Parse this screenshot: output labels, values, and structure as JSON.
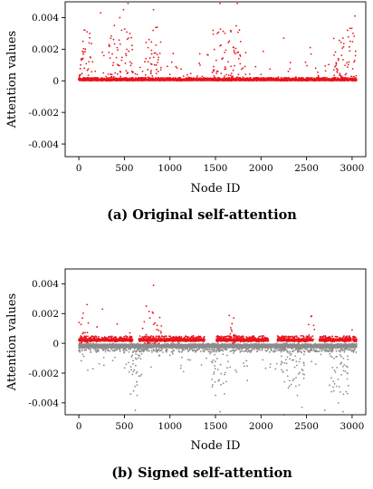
{
  "chart_data": [
    {
      "type": "scatter",
      "caption": "(a) Original self-attention",
      "xlabel": "Node ID",
      "ylabel": "Attention values",
      "xlim": [
        -150,
        3150
      ],
      "ylim": [
        -0.0048,
        0.005
      ],
      "xticks": [
        0,
        500,
        1000,
        1500,
        2000,
        2500,
        3000
      ],
      "yticks": [
        -0.004,
        -0.002,
        0,
        0.002,
        0.004
      ],
      "ytick_labels": [
        "-0.004",
        "-0.002",
        "0",
        "0.002",
        "0.004"
      ],
      "n_nodes": 3050,
      "positive_color": "#e8141c",
      "negative_color": "#8c8c8c",
      "series": [
        {
          "values_sample": [
            [
              20,
              0.001
            ],
            [
              45,
              0.0025
            ],
            [
              60,
              0.0008
            ],
            [
              90,
              0.0031
            ],
            [
              120,
              0.003
            ],
            [
              150,
              0.0012
            ],
            [
              180,
              0.0006
            ],
            [
              240,
              0.0043
            ],
            [
              270,
              0.0005
            ],
            [
              330,
              0.0018
            ],
            [
              350,
              0.0027
            ],
            [
              390,
              0.0035
            ],
            [
              420,
              0.0021
            ],
            [
              450,
              0.004
            ],
            [
              470,
              0.0032
            ],
            [
              490,
              0.0045
            ],
            [
              520,
              0.0016
            ],
            [
              540,
              0.0049
            ],
            [
              560,
              0.003
            ],
            [
              580,
              0.0011
            ],
            [
              640,
              0.0004
            ],
            [
              700,
              0.0006
            ],
            [
              760,
              0.0021
            ],
            [
              800,
              0.0017
            ],
            [
              820,
              0.0045
            ],
            [
              850,
              0.001
            ],
            [
              900,
              0.0007
            ],
            [
              1000,
              0.0004
            ],
            [
              1150,
              0.0003
            ],
            [
              1300,
              0.0003
            ],
            [
              1480,
              0.0009
            ],
            [
              1520,
              0.003
            ],
            [
              1550,
              0.0049
            ],
            [
              1600,
              0.0018
            ],
            [
              1640,
              0.0012
            ],
            [
              1700,
              0.0021
            ],
            [
              1740,
              0.0049
            ],
            [
              1800,
              0.0008
            ],
            [
              2000,
              0.0004
            ],
            [
              2250,
              0.0027
            ],
            [
              2300,
              0.0006
            ],
            [
              2540,
              0.0021
            ],
            [
              2600,
              0.0008
            ],
            [
              2800,
              0.0007
            ],
            [
              2850,
              0.0014
            ],
            [
              2900,
              0.0027
            ],
            [
              2950,
              0.0032
            ],
            [
              3010,
              0.003
            ],
            [
              3030,
              0.0041
            ]
          ]
        }
      ]
    },
    {
      "type": "scatter",
      "caption": "(b) Signed self-attention",
      "xlabel": "Node ID",
      "ylabel": "Attention values",
      "xlim": [
        -150,
        3150
      ],
      "ylim": [
        -0.0048,
        0.005
      ],
      "xticks": [
        0,
        500,
        1000,
        1500,
        2000,
        2500,
        3000
      ],
      "yticks": [
        -0.004,
        -0.002,
        0,
        0.002,
        0.004
      ],
      "ytick_labels": [
        "-0.004",
        "-0.002",
        "0",
        "0.002",
        "0.004"
      ],
      "n_nodes": 3050,
      "positive_color": "#e8141c",
      "negative_color": "#8c8c8c",
      "series": [
        {
          "values_sample": [
            [
              40,
              0.0017
            ],
            [
              90,
              0.0026
            ],
            [
              200,
              0.0011
            ],
            [
              260,
              0.0023
            ],
            [
              420,
              0.0013
            ],
            [
              560,
              0.0007
            ],
            [
              600,
              -0.0032
            ],
            [
              620,
              -0.0045
            ],
            [
              640,
              -0.0035
            ],
            [
              660,
              -0.0022
            ],
            [
              700,
              0.001
            ],
            [
              740,
              0.0025
            ],
            [
              780,
              0.0017
            ],
            [
              820,
              0.0039
            ],
            [
              860,
              0.0012
            ],
            [
              900,
              0.0008
            ],
            [
              1000,
              -0.0008
            ],
            [
              1200,
              -0.0011
            ],
            [
              1400,
              -0.001
            ],
            [
              1500,
              -0.0035
            ],
            [
              1550,
              -0.0046
            ],
            [
              1600,
              -0.0021
            ],
            [
              1680,
              0.0008
            ],
            [
              1700,
              0.0017
            ],
            [
              1720,
              -0.0018
            ],
            [
              1850,
              -0.0025
            ],
            [
              2100,
              -0.0016
            ],
            [
              2250,
              -0.0048
            ],
            [
              2300,
              -0.003
            ],
            [
              2350,
              -0.0025
            ],
            [
              2400,
              -0.0035
            ],
            [
              2450,
              -0.0043
            ],
            [
              2550,
              0.0018
            ],
            [
              2600,
              -0.0014
            ],
            [
              2700,
              -0.0045
            ],
            [
              2800,
              -0.0032
            ],
            [
              2850,
              -0.004
            ],
            [
              2900,
              -0.0046
            ],
            [
              2950,
              -0.002
            ],
            [
              3000,
              0.0009
            ]
          ]
        }
      ]
    }
  ]
}
